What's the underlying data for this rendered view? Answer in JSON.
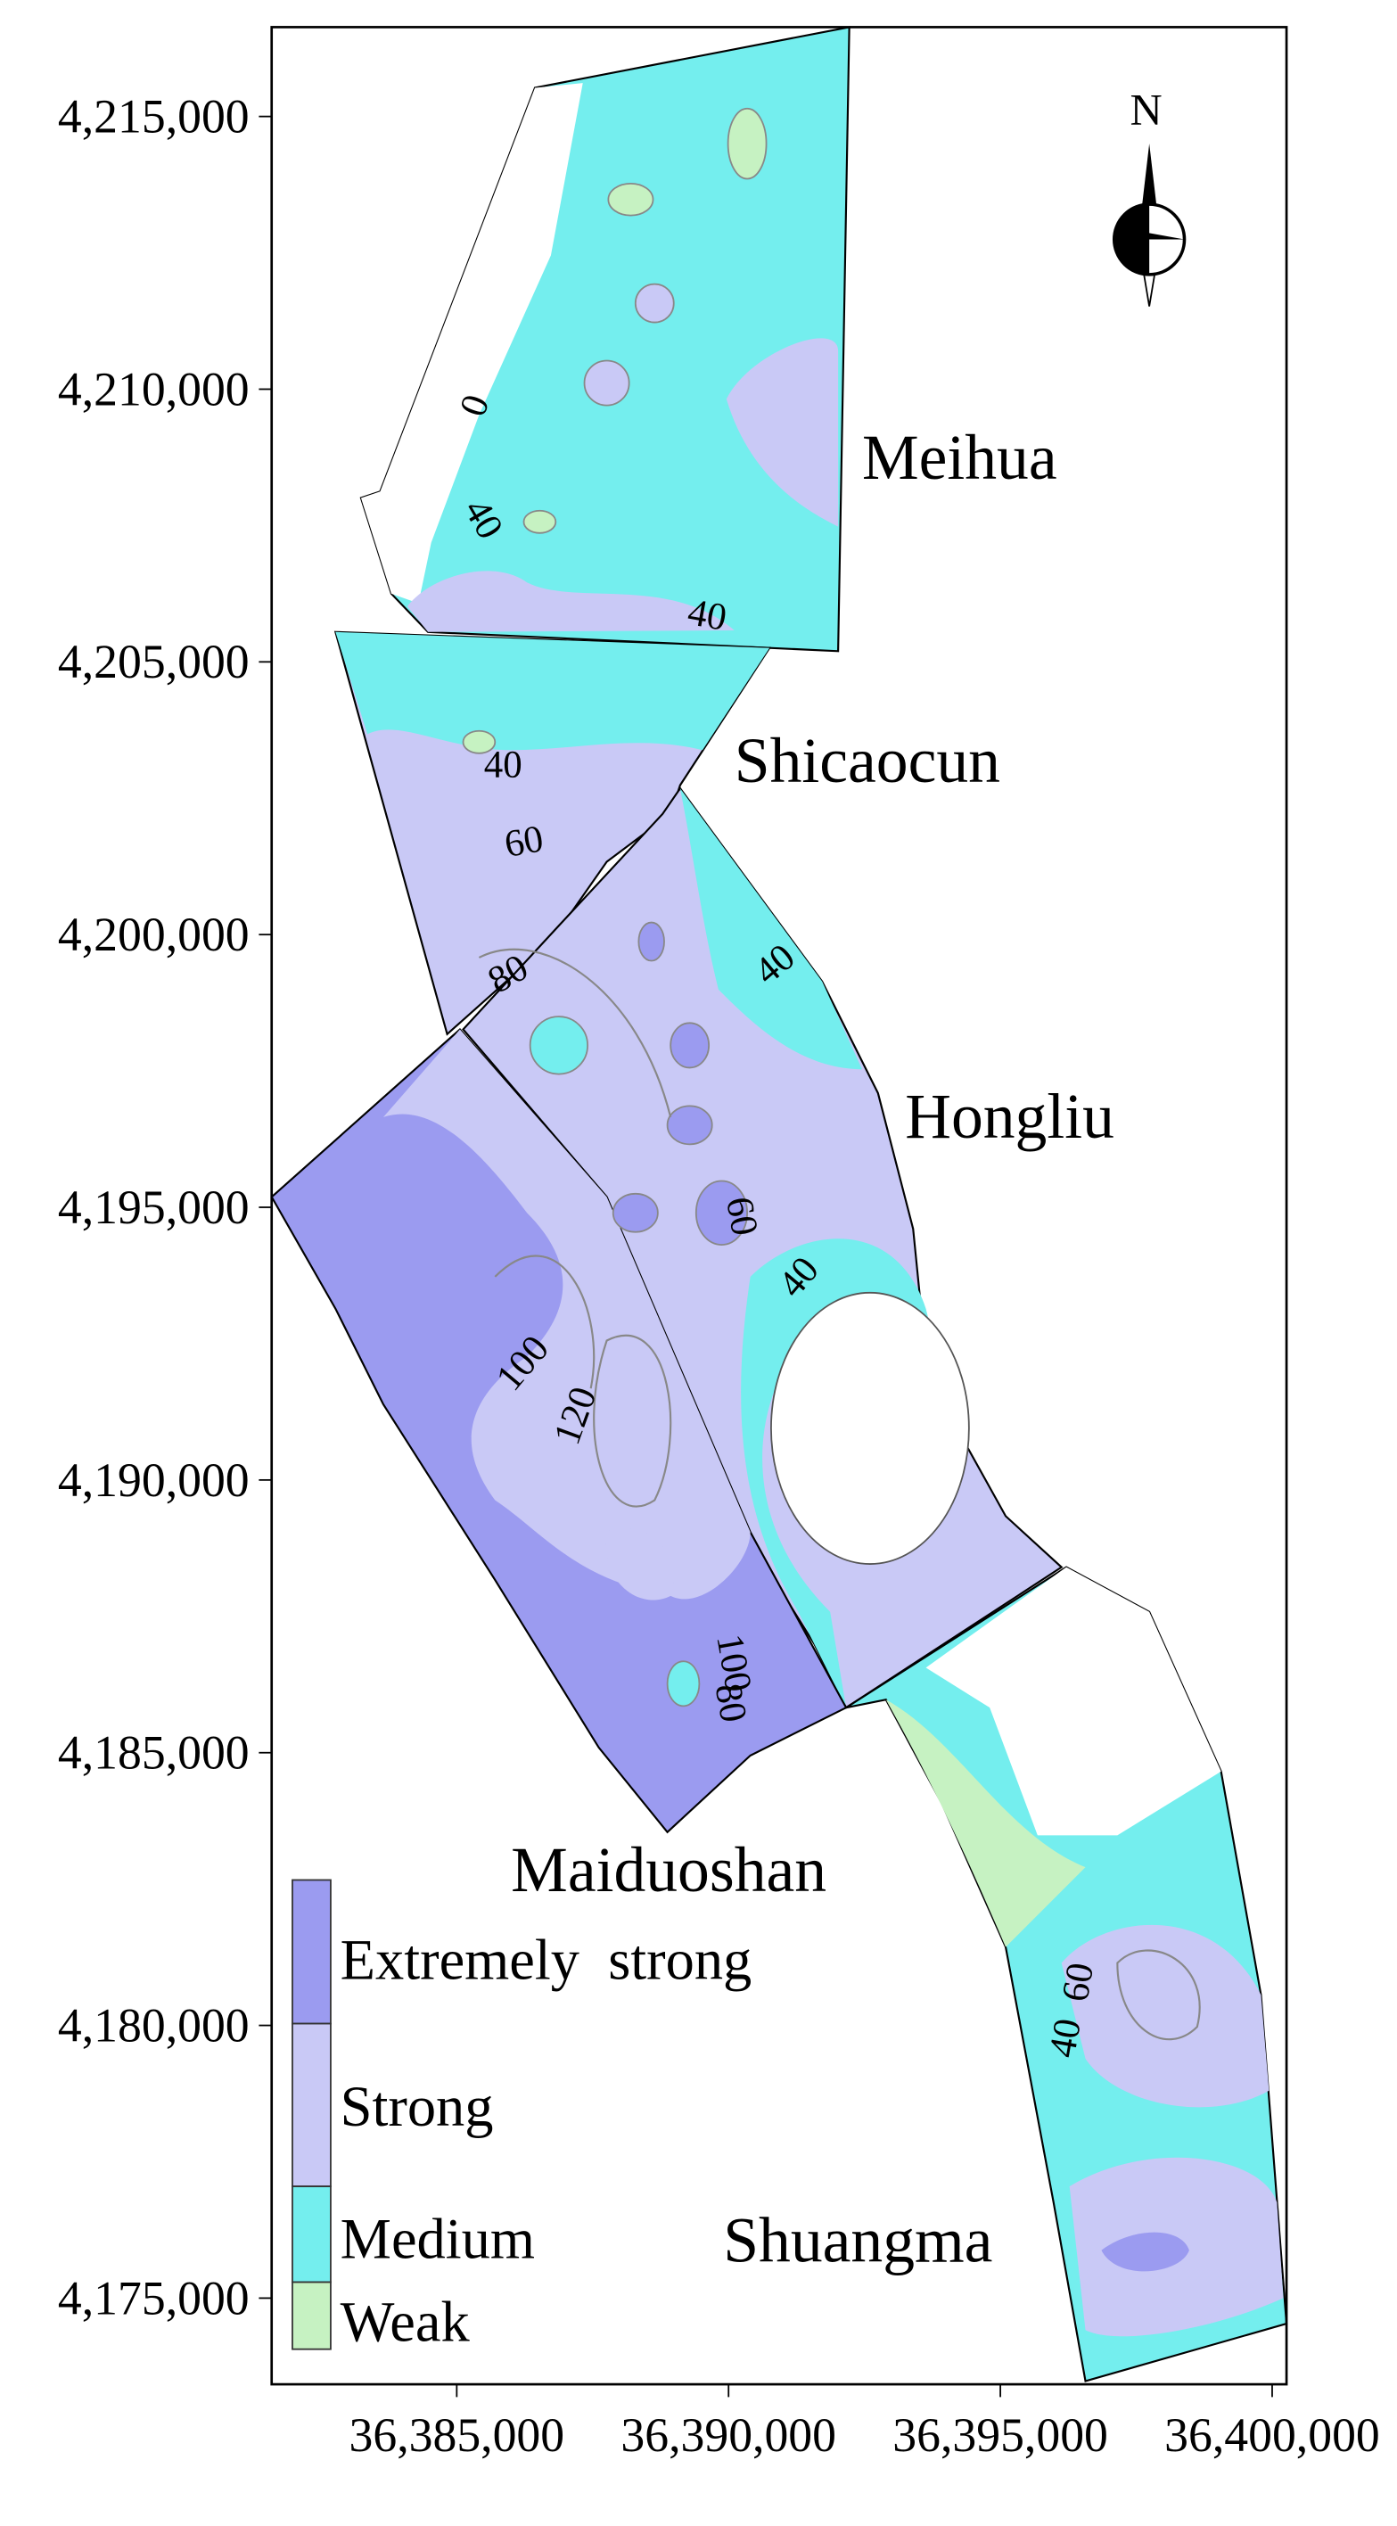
{
  "axes": {
    "xlim": [
      36381595,
      36400264
    ],
    "ylim": [
      4173420,
      4216638
    ],
    "xticks": [
      {
        "value": 36385000,
        "label": "36,385,000"
      },
      {
        "value": 36390000,
        "label": "36,390,000"
      },
      {
        "value": 36395000,
        "label": "36,395,000"
      },
      {
        "value": 36400000,
        "label": "36,400,000"
      }
    ],
    "yticks": [
      {
        "value": 4215000,
        "label": "4,215,000"
      },
      {
        "value": 4210000,
        "label": "4,210,000"
      },
      {
        "value": 4205000,
        "label": "4,205,000"
      },
      {
        "value": 4200000,
        "label": "4,200,000"
      },
      {
        "value": 4195000,
        "label": "4,195,000"
      },
      {
        "value": 4190000,
        "label": "4,190,000"
      },
      {
        "value": 4185000,
        "label": "4,185,000"
      },
      {
        "value": 4180000,
        "label": "4,180,000"
      },
      {
        "value": 4175000,
        "label": "4,175,000"
      }
    ]
  },
  "regions": [
    "Meihua",
    "Shicaocun",
    "Hongliu",
    "Maiduoshan",
    "Shuangma"
  ],
  "contour_labels": [
    0,
    40,
    40,
    40,
    60,
    80,
    40,
    60,
    40,
    100,
    120,
    100,
    80,
    60,
    40
  ],
  "north": "N",
  "legend": {
    "items": [
      {
        "label": "Extremely  strong",
        "color": "#9b9bf0"
      },
      {
        "label": "Strong",
        "color": "#c9c9f6"
      },
      {
        "label": "Medium",
        "color": "#74eeee"
      },
      {
        "label": "Weak",
        "color": "#c6f2c2"
      }
    ]
  }
}
